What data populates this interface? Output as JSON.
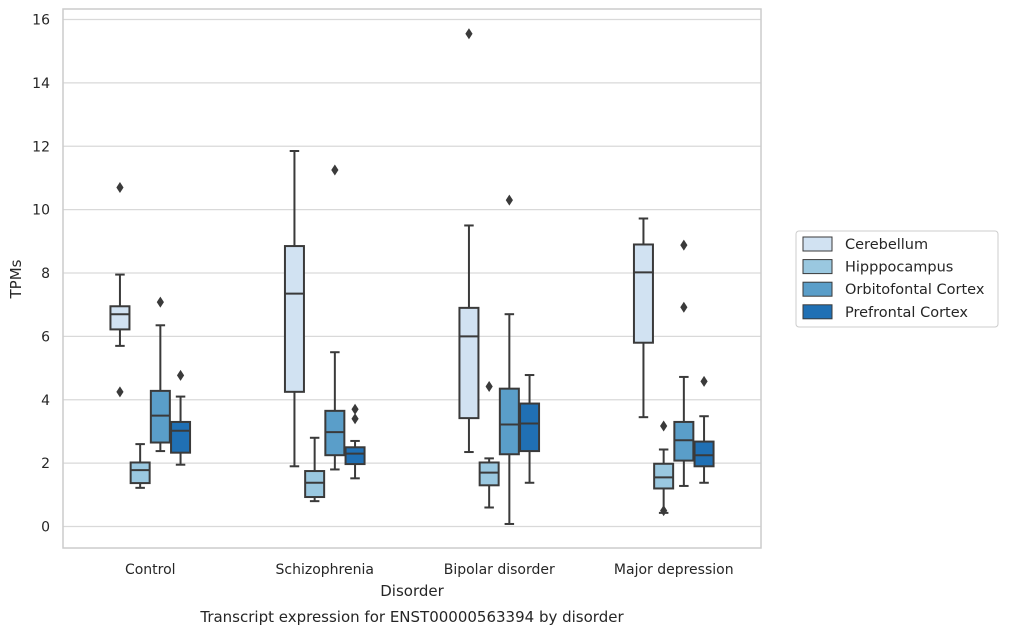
{
  "chart_data": {
    "type": "boxplot",
    "title": "",
    "caption": "Transcript expression for ENST00000563394 by disorder",
    "xlabel": "Disorder",
    "ylabel": "TPMs",
    "ylim": [
      -0.7,
      16.3
    ],
    "yticks": [
      0,
      2,
      4,
      6,
      8,
      10,
      12,
      14,
      16
    ],
    "grid": "horizontal",
    "legend_placement": "right-outside",
    "categories": [
      "Control",
      "Schizophrenia",
      "Bipolar disorder",
      "Major depression"
    ],
    "series": [
      {
        "name": "Cerebellum",
        "color": "#d1e2f2",
        "boxes": [
          {
            "whisker_low": 5.7,
            "q1": 6.22,
            "median": 6.7,
            "q3": 6.95,
            "whisker_high": 7.95,
            "outliers": [
              10.7,
              4.25
            ]
          },
          {
            "whisker_low": 1.9,
            "q1": 4.25,
            "median": 7.35,
            "q3": 8.85,
            "whisker_high": 11.85,
            "outliers": []
          },
          {
            "whisker_low": 2.35,
            "q1": 3.42,
            "median": 6.0,
            "q3": 6.9,
            "whisker_high": 9.5,
            "outliers": [
              15.55
            ]
          },
          {
            "whisker_low": 3.45,
            "q1": 5.8,
            "median": 8.02,
            "q3": 8.9,
            "whisker_high": 9.72,
            "outliers": []
          }
        ]
      },
      {
        "name": "Hipppocampus",
        "color": "#9ac8e0",
        "boxes": [
          {
            "whisker_low": 1.22,
            "q1": 1.37,
            "median": 1.78,
            "q3": 2.02,
            "whisker_high": 2.6,
            "outliers": []
          },
          {
            "whisker_low": 0.8,
            "q1": 0.93,
            "median": 1.38,
            "q3": 1.75,
            "whisker_high": 2.8,
            "outliers": []
          },
          {
            "whisker_low": 0.6,
            "q1": 1.3,
            "median": 1.7,
            "q3": 2.02,
            "whisker_high": 2.15,
            "outliers": [
              4.42
            ]
          },
          {
            "whisker_low": 0.43,
            "q1": 1.2,
            "median": 1.55,
            "q3": 1.98,
            "whisker_high": 2.43,
            "outliers": [
              0.5,
              3.17
            ]
          }
        ]
      },
      {
        "name": "Orbitofontal Cortex",
        "color": "#5a9ec9",
        "boxes": [
          {
            "whisker_low": 2.38,
            "q1": 2.65,
            "median": 3.5,
            "q3": 4.28,
            "whisker_high": 6.35,
            "outliers": [
              7.08
            ]
          },
          {
            "whisker_low": 1.8,
            "q1": 2.25,
            "median": 2.98,
            "q3": 3.65,
            "whisker_high": 5.5,
            "outliers": [
              11.25
            ]
          },
          {
            "whisker_low": 0.08,
            "q1": 2.28,
            "median": 3.22,
            "q3": 4.35,
            "whisker_high": 6.7,
            "outliers": [
              10.3
            ]
          },
          {
            "whisker_low": 1.28,
            "q1": 2.08,
            "median": 2.72,
            "q3": 3.3,
            "whisker_high": 4.72,
            "outliers": [
              8.88,
              6.92
            ]
          }
        ]
      },
      {
        "name": "Prefrontal Cortex",
        "color": "#2070b4",
        "boxes": [
          {
            "whisker_low": 1.95,
            "q1": 2.33,
            "median": 3.02,
            "q3": 3.3,
            "whisker_high": 4.1,
            "outliers": [
              4.77
            ]
          },
          {
            "whisker_low": 1.52,
            "q1": 1.97,
            "median": 2.3,
            "q3": 2.5,
            "whisker_high": 2.7,
            "outliers": [
              3.7,
              3.4
            ]
          },
          {
            "whisker_low": 1.38,
            "q1": 2.38,
            "median": 3.25,
            "q3": 3.88,
            "whisker_high": 4.78,
            "outliers": []
          },
          {
            "whisker_low": 1.38,
            "q1": 1.9,
            "median": 2.25,
            "q3": 2.68,
            "whisker_high": 3.48,
            "outliers": [
              4.58
            ]
          }
        ]
      }
    ]
  }
}
